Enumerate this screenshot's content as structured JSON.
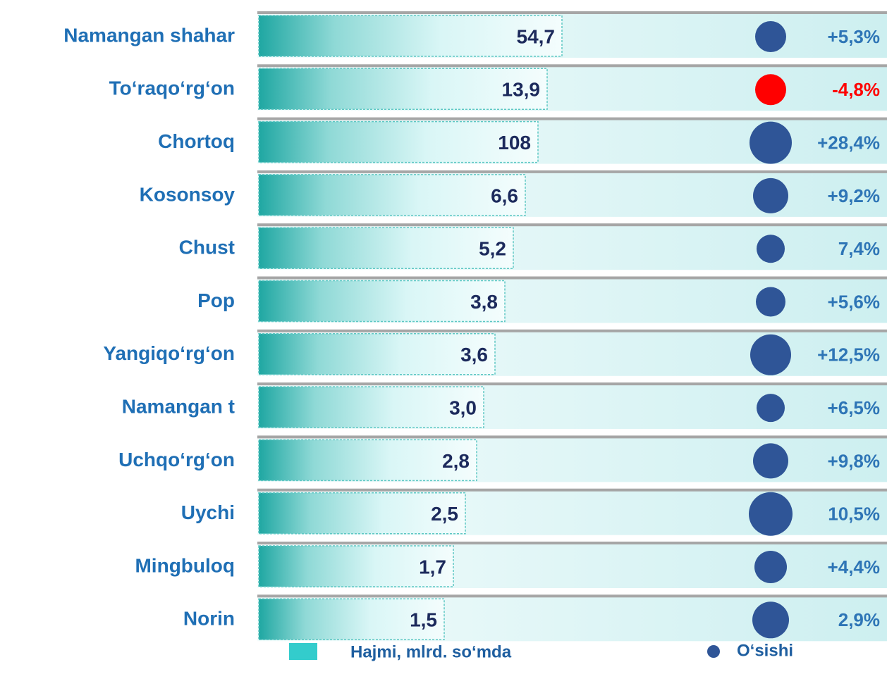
{
  "rows": [
    {
      "label": "Namangan shahar",
      "volume": "54,7",
      "growth": "+5,3%",
      "color": "#2f5597"
    },
    {
      "label": "To‘raqo‘rg‘on",
      "volume": "13,9",
      "growth": "-4,8%",
      "color": "#ff0000"
    },
    {
      "label": "Chortoq",
      "volume": "108",
      "growth": "+28,4%",
      "color": "#2f5597"
    },
    {
      "label": "Kosonsoy",
      "volume": "6,6",
      "growth": "+9,2%",
      "color": "#2f5597"
    },
    {
      "label": "Chust",
      "volume": "5,2",
      "growth": "7,4%",
      "color": "#2f5597"
    },
    {
      "label": "Pop",
      "volume": "3,8",
      "growth": "+5,6%",
      "color": "#2f5597"
    },
    {
      "label": "Yangiqo‘rg‘on",
      "volume": "3,6",
      "growth": "+12,5%",
      "color": "#2f5597"
    },
    {
      "label": "Namangan t",
      "volume": "3,0",
      "growth": "+6,5%",
      "color": "#2f5597"
    },
    {
      "label": "Uchqo‘rg‘on",
      "volume": "2,8",
      "growth": "+9,8%",
      "color": "#2f5597"
    },
    {
      "label": "Uychi",
      "volume": "2,5",
      "growth": "10,5%",
      "color": "#2f5597"
    },
    {
      "label": "Mingbuloq",
      "volume": "1,7",
      "growth": "+4,4%",
      "color": "#2f5597"
    },
    {
      "label": "Norin",
      "volume": "1,5",
      "growth": "2,9%",
      "color": "#2f5597"
    }
  ],
  "legend": {
    "volume": "Hajmi, mlrd. so‘mda",
    "growth": "O‘sishi"
  }
}
